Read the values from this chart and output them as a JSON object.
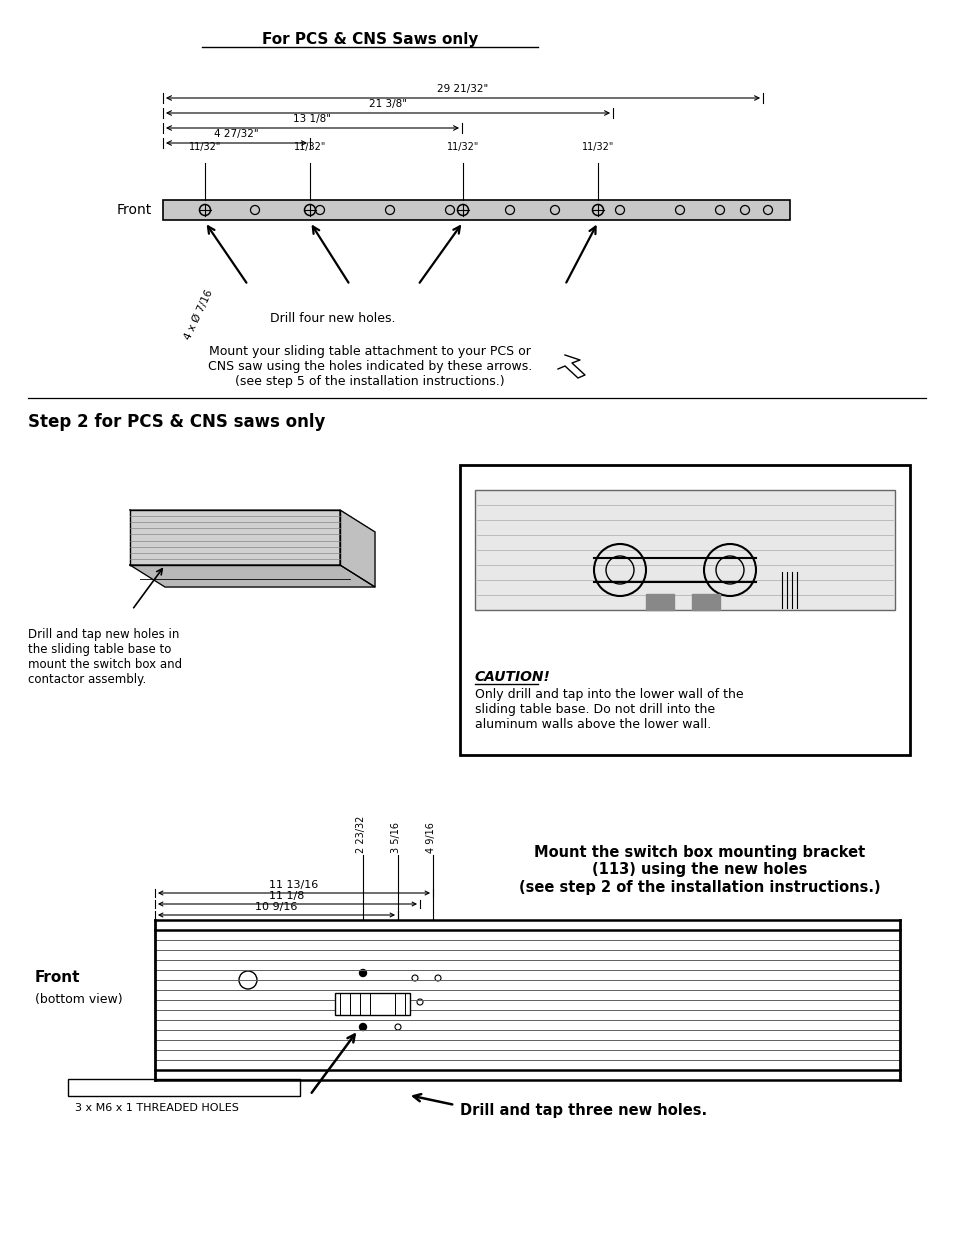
{
  "bg_color": "#ffffff",
  "page_width": 9.54,
  "page_height": 12.35,
  "section1_title": "For PCS & CNS Saws only",
  "step2_title": "Step 2 for PCS & CNS saws only",
  "caution_title": "CAUTION!",
  "caution_text": "Only drill and tap into the lower wall of the\nsliding table base. Do not drill into the\naluminum walls above the lower wall.",
  "mount_text": "Mount the switch box mounting bracket\n(113) using the new holes\n(see step 2 of the installation instructions.)",
  "drill_tap_text": "Drill and tap three new holes.",
  "threaded_holes_text": "3 x M6 x 1 THREADED HOLES",
  "mount_pcs_text": "Mount your sliding table attachment to your PCS or\nCNS saw using the holes indicated by these arrows.\n(see step 5 of the installation instructions.)",
  "drill_four_text": "Drill four new holes.",
  "drill_tap_sketch_text": "Drill and tap new holes in\nthe sliding table base to\nmount the switch box and\ncontactor assembly.",
  "front_label": "Front",
  "front_bottom_label": "Front",
  "front_bottom_sub": "(bottom view)",
  "dim1": "29 21/32\"",
  "dim2": "21 3/8\"",
  "dim3": "13 1/8\"",
  "dim4": "4 27/32\"",
  "dim_11_32": "11/32\"",
  "dim_4x": "4 x Ø 7/16",
  "dim_b1": "11 13/16",
  "dim_b2": "11 1/8",
  "dim_b3": "10 9/16",
  "dim_v1": "2 23/32",
  "dim_v2": "3 5/16",
  "dim_v3": "4 9/16"
}
